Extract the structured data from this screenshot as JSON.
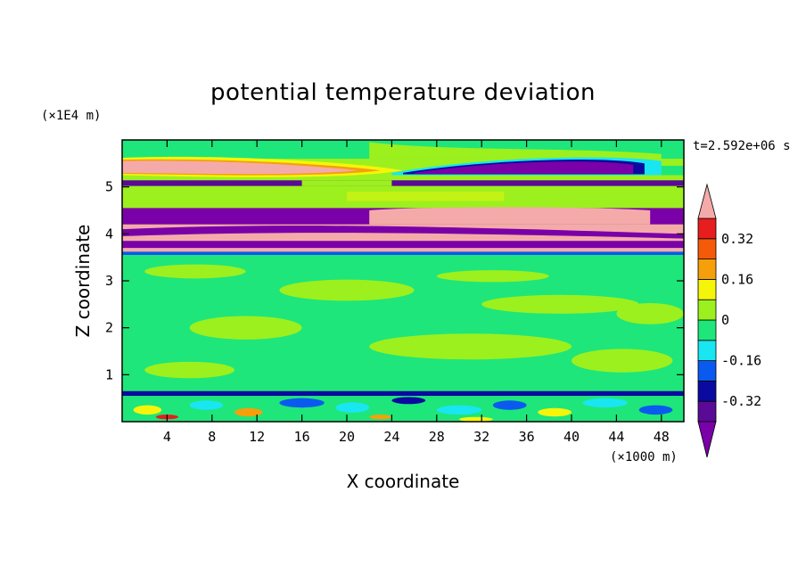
{
  "chart_data": {
    "type": "heatmap",
    "title": "potential temperature deviation",
    "xlabel": "X coordinate",
    "ylabel": "Z coordinate",
    "x_unit": "(×1000 m)",
    "y_unit": "(×1E4 m)",
    "time_label": "t=2.592e+06 s",
    "xlim": [
      0,
      50
    ],
    "ylim": [
      0,
      6
    ],
    "x_ticks": [
      4,
      8,
      12,
      16,
      20,
      24,
      28,
      32,
      36,
      40,
      44,
      48
    ],
    "y_ticks": [
      1,
      2,
      3,
      4,
      5
    ],
    "colorbar": {
      "levels": [
        -0.4,
        -0.32,
        -0.24,
        -0.16,
        -0.08,
        0,
        0.08,
        0.16,
        0.24,
        0.32,
        0.4
      ],
      "tick_labels": [
        "0.32",
        "0.16",
        "0",
        "-0.16",
        "-0.32"
      ],
      "tick_values": [
        0.32,
        0.16,
        0,
        -0.16,
        -0.32
      ],
      "colors": [
        "#7a00a8",
        "#5a0a96",
        "#0a0aa0",
        "#0a5af0",
        "#19e6f0",
        "#1ee67a",
        "#9cf01e",
        "#f5f50a",
        "#f5a00a",
        "#f55a0a",
        "#e61e1e",
        "#f5aaaa"
      ],
      "extend": "both"
    },
    "bands": [
      {
        "z": [
          5.6,
          6.0
        ],
        "level": "0 to 0.08"
      },
      {
        "z": [
          5.25,
          5.6
        ],
        "level": "above 0.4"
      },
      {
        "z": [
          5.0,
          5.25
        ],
        "level": "below -0.4"
      },
      {
        "z": [
          4.55,
          5.0
        ],
        "level": "0.08 to 0.16"
      },
      {
        "z": [
          4.2,
          4.55
        ],
        "level": "above 0.4 / below -0.4"
      },
      {
        "z": [
          3.55,
          4.2
        ],
        "level": "below -0.4 / above 0.4"
      },
      {
        "z": [
          0.65,
          3.55
        ],
        "level": "-0.08 to 0.16"
      },
      {
        "z": [
          0.0,
          0.65
        ],
        "level": "mixed -0.4 to 0.4"
      }
    ]
  }
}
